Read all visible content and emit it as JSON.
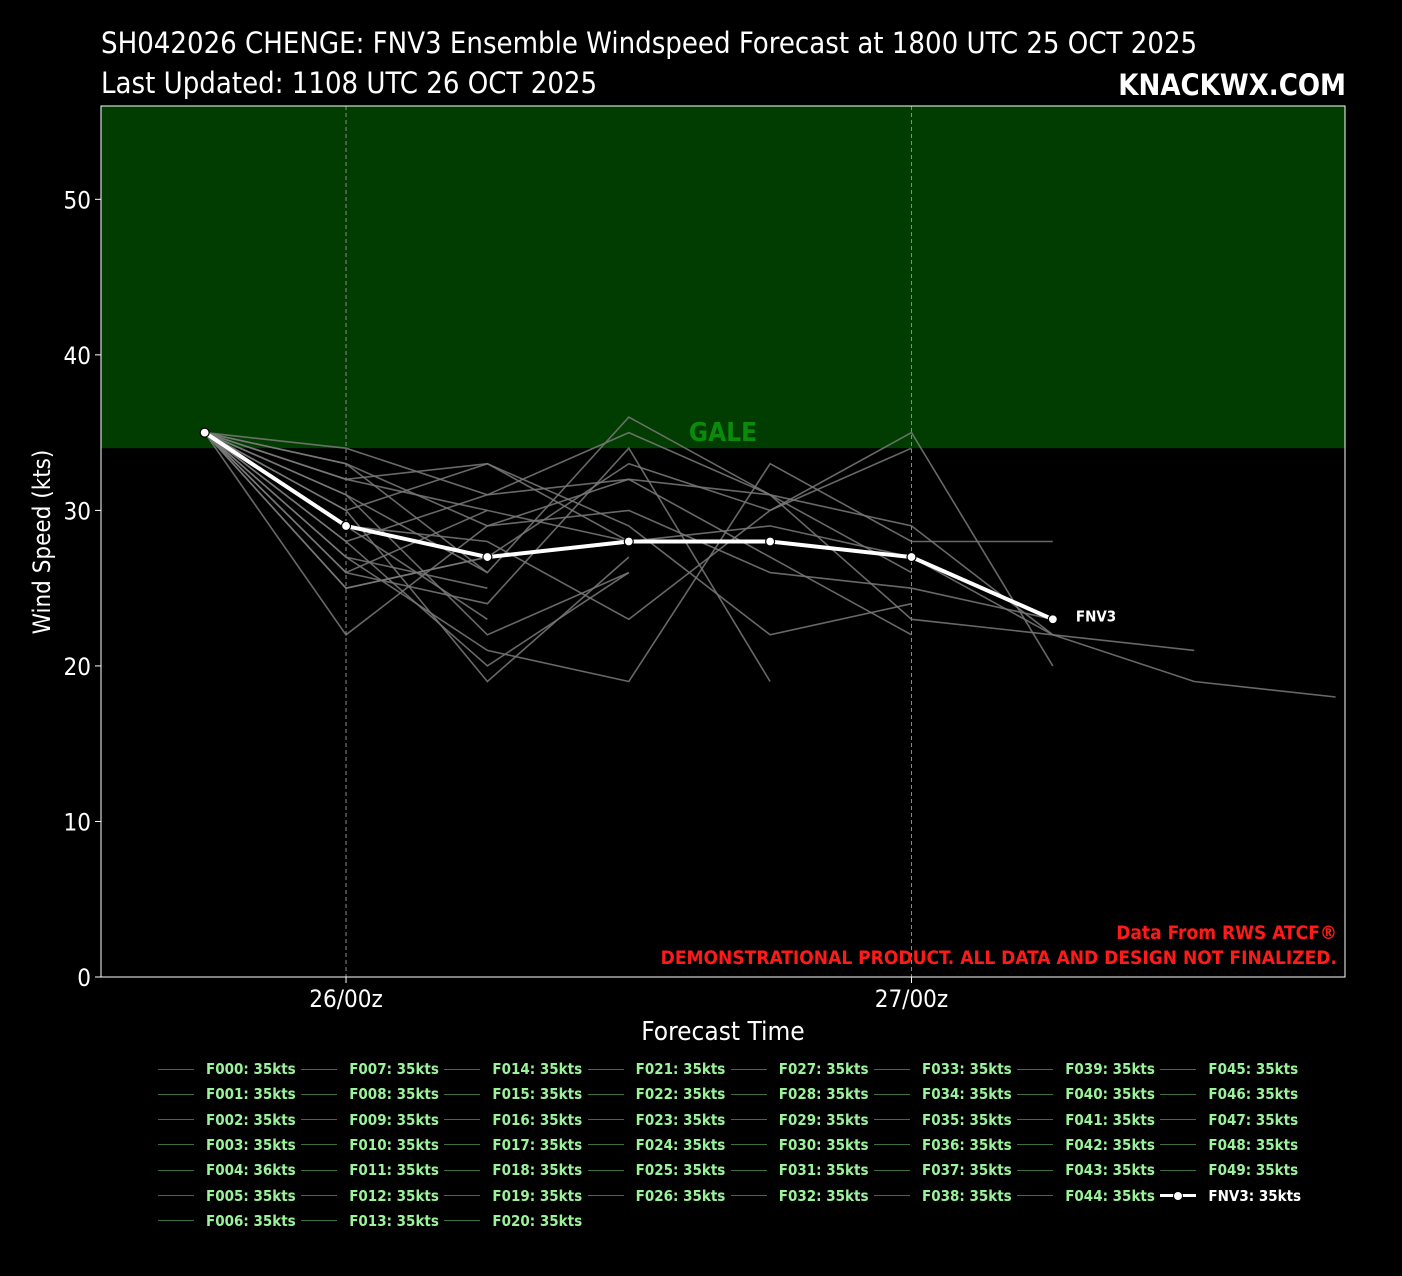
{
  "header": {
    "title_line1": "SH042026 CHENGE: FNV3 Ensemble Windspeed Forecast at 1800 UTC 25 OCT 2025",
    "title_line2": "Last Updated: 1108 UTC 26 OCT 2025",
    "brand": "KNACKWX.COM"
  },
  "chart_data": {
    "type": "line",
    "xlabel": "Forecast Time",
    "ylabel": "Wind Speed (kts)",
    "ylim": [
      0,
      56
    ],
    "yticks": [
      0,
      10,
      20,
      30,
      40,
      50
    ],
    "x_hours": [
      0,
      6,
      12,
      18,
      24,
      30,
      36,
      42,
      48,
      54
    ],
    "xticks": [
      {
        "hour": 6,
        "label": "26/00z"
      },
      {
        "hour": 30,
        "label": "27/00z"
      }
    ],
    "xlim_hours": [
      -4.4,
      48.4
    ],
    "grid": "vertical dashed at x ticks",
    "gale_zone": {
      "from": 34,
      "to": 56,
      "label": "GALE",
      "color": "#013d01",
      "label_color": "#0b8a0b"
    },
    "ensemble_color": "#7a7a7a",
    "main_series": {
      "name": "FNV3",
      "hours": [
        0,
        6,
        12,
        18,
        24,
        30,
        36
      ],
      "values": [
        35,
        29,
        27,
        28,
        28,
        27,
        23
      ],
      "color": "#ffffff"
    },
    "members": [
      {
        "hours": [
          0,
          6,
          12,
          18,
          24,
          30,
          36
        ],
        "values": [
          35,
          34,
          31,
          32,
          31,
          29,
          22
        ]
      },
      {
        "hours": [
          0,
          6,
          12,
          18,
          24,
          30,
          36
        ],
        "values": [
          35,
          33,
          29,
          30,
          26,
          25,
          23
        ]
      },
      {
        "hours": [
          0,
          6,
          12,
          18,
          24,
          30,
          36,
          42,
          48
        ],
        "values": [
          35,
          32,
          33,
          28,
          29,
          27,
          22,
          19,
          18
        ]
      },
      {
        "hours": [
          0,
          6,
          12,
          18,
          24,
          30,
          36,
          42
        ],
        "values": [
          35,
          31,
          26,
          36,
          31,
          23,
          22,
          21
        ]
      },
      {
        "hours": [
          0,
          6,
          12,
          18,
          24,
          30
        ],
        "values": [
          35,
          30,
          33,
          29,
          22,
          24
        ]
      },
      {
        "hours": [
          0,
          6,
          12,
          18,
          24,
          30,
          36
        ],
        "values": [
          35,
          29,
          28,
          23,
          30,
          35,
          20
        ]
      },
      {
        "hours": [
          0,
          6,
          12,
          18,
          24,
          30
        ],
        "values": [
          35,
          28,
          31,
          35,
          31,
          26
        ]
      },
      {
        "hours": [
          0,
          6,
          12,
          18,
          24,
          30,
          36
        ],
        "values": [
          35,
          27,
          21,
          19,
          33,
          28,
          28
        ]
      },
      {
        "hours": [
          0,
          6,
          12,
          18,
          24
        ],
        "values": [
          35,
          26,
          24,
          34,
          19
        ]
      },
      {
        "hours": [
          0,
          6,
          12,
          18,
          24,
          30
        ],
        "values": [
          35,
          25,
          27,
          33,
          30,
          34
        ]
      },
      {
        "hours": [
          0,
          6,
          12,
          18,
          24,
          30
        ],
        "values": [
          35,
          22,
          29,
          32,
          27,
          22
        ]
      },
      {
        "hours": [
          0,
          6,
          12,
          18
        ],
        "values": [
          35,
          30,
          19,
          27
        ]
      },
      {
        "hours": [
          0,
          6,
          12,
          18
        ],
        "values": [
          35,
          28,
          20,
          26
        ]
      },
      {
        "hours": [
          0,
          6,
          12,
          18
        ],
        "values": [
          35,
          31,
          22,
          26
        ]
      },
      {
        "hours": [
          0,
          6,
          12,
          18
        ],
        "values": [
          35,
          26,
          30,
          28
        ]
      },
      {
        "hours": [
          0,
          6,
          12
        ],
        "values": [
          35,
          29,
          23
        ]
      },
      {
        "hours": [
          0,
          6,
          12
        ],
        "values": [
          35,
          27,
          25
        ]
      },
      {
        "hours": [
          0,
          6,
          12
        ],
        "values": [
          35,
          33,
          26
        ]
      },
      {
        "hours": [
          0,
          6,
          12
        ],
        "values": [
          35,
          25,
          27
        ]
      },
      {
        "hours": [
          0,
          6,
          12
        ],
        "values": [
          35,
          32,
          30
        ]
      }
    ],
    "annotations": [
      {
        "text": "Data From RWS ATCF®",
        "color": "#ff1a1a"
      },
      {
        "text": "DEMONSTRATIONAL PRODUCT. ALL DATA AND DESIGN NOT FINALIZED.",
        "color": "#ff1a1a"
      }
    ],
    "legend": [
      "F000: 35kts",
      "F001: 35kts",
      "F002: 35kts",
      "F003: 35kts",
      "F004: 36kts",
      "F005: 35kts",
      "F006: 35kts",
      "F007: 35kts",
      "F008: 35kts",
      "F009: 35kts",
      "F010: 35kts",
      "F011: 35kts",
      "F012: 35kts",
      "F013: 35kts",
      "F014: 35kts",
      "F015: 35kts",
      "F016: 35kts",
      "F017: 35kts",
      "F018: 35kts",
      "F019: 35kts",
      "F020: 35kts",
      "F021: 35kts",
      "F022: 35kts",
      "F023: 35kts",
      "F024: 35kts",
      "F025: 35kts",
      "F026: 35kts",
      "F027: 35kts",
      "F028: 35kts",
      "F029: 35kts",
      "F030: 35kts",
      "F031: 35kts",
      "F032: 35kts",
      "F033: 35kts",
      "F034: 35kts",
      "F035: 35kts",
      "F036: 35kts",
      "F037: 35kts",
      "F038: 35kts",
      "F039: 35kts",
      "F040: 35kts",
      "F041: 35kts",
      "F042: 35kts",
      "F043: 35kts",
      "F044: 35kts",
      "F045: 35kts",
      "F046: 35kts",
      "F047: 35kts",
      "F048: 35kts",
      "F049: 35kts",
      "FNV3: 35kts"
    ],
    "legend_columns": [
      7,
      7,
      7,
      6,
      6,
      6,
      6,
      6
    ]
  }
}
